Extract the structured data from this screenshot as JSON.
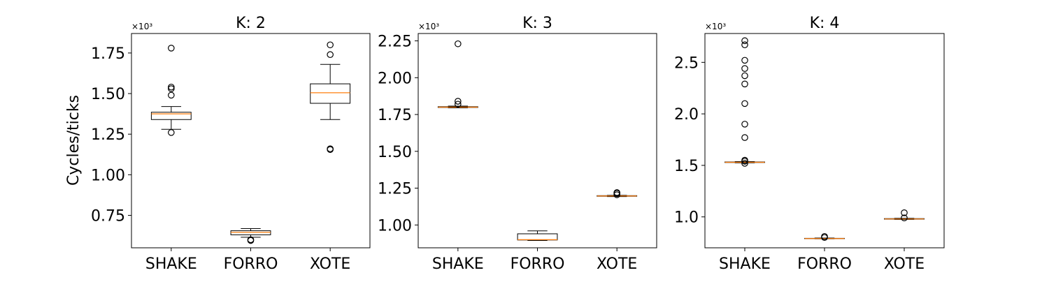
{
  "figure": {
    "ylabel": "Cycles/ticks"
  },
  "chart_data": [
    {
      "type": "box",
      "title": "K: 2",
      "ylabel": "Cycles/ticks",
      "multiplier": "×10³",
      "ylim": [
        0.55,
        1.87
      ],
      "yticks": [
        0.75,
        1.0,
        1.25,
        1.5,
        1.75
      ],
      "ytick_labels": [
        "0.75",
        "1.00",
        "1.25",
        "1.50",
        "1.75"
      ],
      "categories": [
        "SHAKE",
        "FORRO",
        "XOTE"
      ],
      "boxes": [
        {
          "name": "SHAKE",
          "whislo": 1.28,
          "q1": 1.34,
          "med": 1.375,
          "q3": 1.385,
          "whishi": 1.42,
          "fliers": [
            1.26,
            1.49,
            1.53,
            1.54,
            1.78
          ]
        },
        {
          "name": "FORRO",
          "whislo": 0.615,
          "q1": 0.63,
          "med": 0.645,
          "q3": 0.655,
          "whishi": 0.668,
          "fliers": [
            0.595,
            0.6
          ]
        },
        {
          "name": "XOTE",
          "whislo": 1.34,
          "q1": 1.44,
          "med": 1.505,
          "q3": 1.56,
          "whishi": 1.68,
          "fliers": [
            1.155,
            1.16,
            1.74,
            1.8
          ]
        }
      ]
    },
    {
      "type": "box",
      "title": "K: 3",
      "ylabel": "",
      "multiplier": "×10³",
      "ylim": [
        0.845,
        2.3
      ],
      "yticks": [
        1.0,
        1.25,
        1.5,
        1.75,
        2.0,
        2.25
      ],
      "ytick_labels": [
        "1.00",
        "1.25",
        "1.50",
        "1.75",
        "2.00",
        "2.25"
      ],
      "categories": [
        "SHAKE",
        "FORRO",
        "XOTE"
      ],
      "boxes": [
        {
          "name": "SHAKE",
          "whislo": 1.795,
          "q1": 1.798,
          "med": 1.8,
          "q3": 1.803,
          "whishi": 1.807,
          "fliers": [
            1.82,
            1.84,
            2.23
          ]
        },
        {
          "name": "FORRO",
          "whislo": 0.895,
          "q1": 0.898,
          "med": 0.9,
          "q3": 0.94,
          "whishi": 0.96,
          "fliers": []
        },
        {
          "name": "XOTE",
          "whislo": 1.193,
          "q1": 1.195,
          "med": 1.197,
          "q3": 1.199,
          "whishi": 1.201,
          "fliers": [
            1.205,
            1.215,
            1.22
          ]
        }
      ]
    },
    {
      "type": "box",
      "title": "K: 4",
      "ylabel": "",
      "multiplier": "×10³",
      "ylim": [
        0.7,
        2.78
      ],
      "yticks": [
        1.0,
        1.5,
        2.0,
        2.5
      ],
      "ytick_labels": [
        "1.0",
        "1.5",
        "2.0",
        "2.5"
      ],
      "categories": [
        "SHAKE",
        "FORRO",
        "XOTE"
      ],
      "boxes": [
        {
          "name": "SHAKE",
          "whislo": 1.525,
          "q1": 1.528,
          "med": 1.53,
          "q3": 1.533,
          "whishi": 1.537,
          "fliers": [
            1.52,
            1.54,
            1.55,
            1.77,
            1.9,
            2.1,
            2.29,
            2.37,
            2.44,
            2.52,
            2.67,
            2.71
          ]
        },
        {
          "name": "FORRO",
          "whislo": 0.787,
          "q1": 0.789,
          "med": 0.79,
          "q3": 0.792,
          "whishi": 0.795,
          "fliers": [
            0.8,
            0.81
          ]
        },
        {
          "name": "XOTE",
          "whislo": 0.975,
          "q1": 0.978,
          "med": 0.98,
          "q3": 0.983,
          "whishi": 0.986,
          "fliers": [
            0.99,
            1.04
          ]
        }
      ]
    }
  ]
}
